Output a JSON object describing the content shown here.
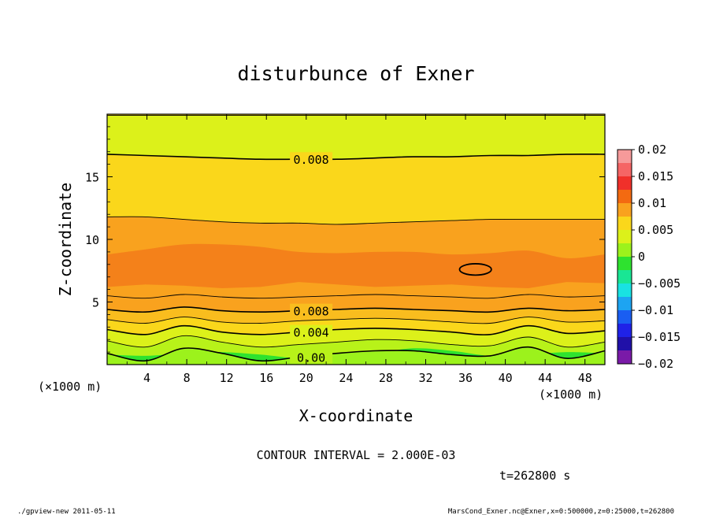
{
  "chart_data": {
    "type": "contour",
    "title": "disturbunce of Exner",
    "xlabel": "X-coordinate",
    "ylabel": "Z-coordinate",
    "x_unit_left": "(×1000 m)",
    "x_unit_right": "(×1000 m)",
    "xlim": [
      0,
      50
    ],
    "ylim": [
      0,
      20
    ],
    "xticks": [
      4,
      8,
      12,
      16,
      20,
      24,
      28,
      32,
      36,
      40,
      44,
      48
    ],
    "yticks": [
      5,
      10,
      15
    ],
    "contour_interval_text": "CONTOUR INTERVAL = 2.000E-03",
    "time_text": "t=262800 s",
    "colorbar": {
      "range": [
        -0.02,
        0.02
      ],
      "tick_labels": [
        "0.02",
        "0.015",
        "0.01",
        "0.005",
        "0",
        "−0.005",
        "−0.01",
        "−0.015",
        "−0.02"
      ],
      "levels": [
        {
          "from": 0.0175,
          "to": 0.02,
          "color": "#f69a9a"
        },
        {
          "from": 0.015,
          "to": 0.0175,
          "color": "#f56565"
        },
        {
          "from": 0.0125,
          "to": 0.015,
          "color": "#f0302a"
        },
        {
          "from": 0.01,
          "to": 0.0125,
          "color": "#f36a11"
        },
        {
          "from": 0.0075,
          "to": 0.01,
          "color": "#f9a21e"
        },
        {
          "from": 0.005,
          "to": 0.0075,
          "color": "#fad71b"
        },
        {
          "from": 0.0025,
          "to": 0.005,
          "color": "#dcf11a"
        },
        {
          "from": 0.0,
          "to": 0.0025,
          "color": "#9cf21c"
        },
        {
          "from": -0.0025,
          "to": 0.0,
          "color": "#2ee22f"
        },
        {
          "from": -0.005,
          "to": -0.0025,
          "color": "#19e694"
        },
        {
          "from": -0.0075,
          "to": -0.005,
          "color": "#19e2e2"
        },
        {
          "from": -0.01,
          "to": -0.0075,
          "color": "#1da4f2"
        },
        {
          "from": -0.0125,
          "to": -0.01,
          "color": "#1a5ef2"
        },
        {
          "from": -0.015,
          "to": -0.0125,
          "color": "#1f22e8"
        },
        {
          "from": -0.0175,
          "to": -0.015,
          "color": "#2010a8"
        },
        {
          "from": -0.02,
          "to": -0.0175,
          "color": "#7a1aa8"
        }
      ]
    },
    "bands": [
      {
        "value": -0.002,
        "color": "#2ee22f",
        "z": [
          0.8,
          0.7,
          0.9,
          1.0,
          0.8,
          0.5,
          0.6,
          0.9,
          1.3,
          1.1,
          0.7,
          0.8,
          1.0,
          0.9
        ],
        "label": ""
      },
      {
        "value": 0.0,
        "color": "#9cf21c",
        "z": [
          0.9,
          0.3,
          1.3,
          0.9,
          0.3,
          0.6,
          0.9,
          1.1,
          1.1,
          0.8,
          0.7,
          1.4,
          0.5,
          1.1
        ],
        "label": "0.00"
      },
      {
        "value": 0.002,
        "color": "#b8f219",
        "z": [
          1.9,
          1.4,
          2.3,
          1.8,
          1.4,
          1.6,
          1.8,
          2.0,
          1.9,
          1.6,
          1.5,
          2.2,
          1.4,
          1.8
        ],
        "label": ""
      },
      {
        "value": 0.004,
        "color": "#dcf11a",
        "z": [
          2.8,
          2.4,
          3.1,
          2.6,
          2.4,
          2.6,
          2.8,
          2.9,
          2.8,
          2.6,
          2.4,
          3.1,
          2.5,
          2.7
        ],
        "label": "0.004"
      },
      {
        "value": 0.006,
        "color": "#fad71b",
        "z": [
          3.6,
          3.3,
          3.8,
          3.4,
          3.3,
          3.5,
          3.6,
          3.7,
          3.6,
          3.4,
          3.3,
          3.8,
          3.4,
          3.5
        ],
        "label": ""
      },
      {
        "value": 0.008,
        "color": "#f9bd1e",
        "z": [
          4.4,
          4.2,
          4.6,
          4.3,
          4.2,
          4.3,
          4.4,
          4.5,
          4.4,
          4.3,
          4.2,
          4.5,
          4.3,
          4.4
        ],
        "label": "0.008"
      },
      {
        "value": 0.01,
        "color": "#f9a21e",
        "z": [
          5.5,
          5.3,
          5.6,
          5.4,
          5.3,
          5.4,
          5.5,
          5.6,
          5.5,
          5.4,
          5.3,
          5.6,
          5.4,
          5.5
        ],
        "label": ""
      },
      {
        "value": 0.0115,
        "color": "#f4811a",
        "z": [
          8.8,
          9.2,
          9.6,
          9.6,
          9.4,
          9.0,
          8.9,
          9.0,
          9.0,
          8.8,
          8.9,
          9.1,
          8.5,
          8.8
        ],
        "label": ""
      },
      {
        "value": 0.0125,
        "color": "#f36a11",
        "z": [
          6.2,
          6.4,
          6.3,
          6.1,
          6.2,
          6.6,
          6.4,
          6.2,
          6.3,
          6.4,
          6.2,
          6.1,
          6.6,
          6.5
        ],
        "label": ""
      },
      {
        "value": 0.01,
        "color": "#f9a21e",
        "z": [
          11.8,
          11.8,
          11.6,
          11.4,
          11.3,
          11.3,
          11.2,
          11.3,
          11.4,
          11.5,
          11.6,
          11.6,
          11.6,
          11.6
        ],
        "label": ""
      },
      {
        "value": 0.008,
        "color": "#fad71b",
        "z": [
          16.8,
          16.7,
          16.6,
          16.5,
          16.4,
          16.4,
          16.4,
          16.5,
          16.6,
          16.6,
          16.7,
          16.7,
          16.8,
          16.8
        ],
        "label": "0.008"
      },
      {
        "value": 0.006,
        "color": "#dcf11a",
        "z": [
          19.9,
          19.9,
          19.9,
          19.9,
          19.9,
          19.9,
          19.9,
          19.9,
          19.9,
          19.9,
          19.9,
          19.9,
          19.9,
          19.9
        ],
        "label": ""
      }
    ],
    "closed_contour": {
      "value": 0.012,
      "x_center": 37.0,
      "z_center": 7.6,
      "x_radius": 1.6,
      "z_radius": 0.45
    }
  },
  "footer": {
    "left": "./gpview-new  2011-05-11",
    "right": "MarsCond_Exner.nc@Exner,x=0:500000,z=0:25000,t=262800"
  }
}
